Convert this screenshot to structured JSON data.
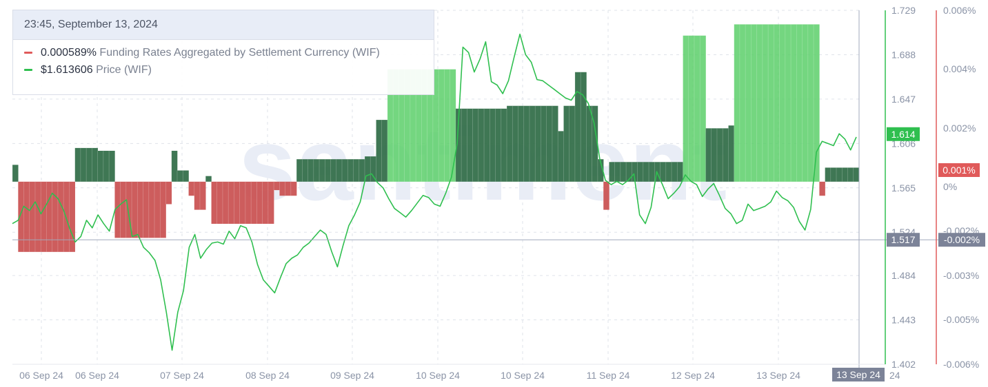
{
  "tooltip": {
    "date": "23:45, September 13, 2024",
    "items": [
      {
        "value": "0.000589%",
        "label": "Funding Rates Aggregated by Settlement Currency (WIF)",
        "color": "#e05a5a"
      },
      {
        "value": "$1.613606",
        "label": "Price (WIF)",
        "color": "#2fbf4f"
      }
    ]
  },
  "watermark": "santiment",
  "crosshair": {
    "price_label": "1.517",
    "rate_label": "-0.002%",
    "date_label": "13 Sep 24"
  },
  "last_values": {
    "price_label": "1.614",
    "rate_label": "0.001%"
  },
  "colors": {
    "price_line": "#2fbf4f",
    "funding_negative": "#c94f4f",
    "funding_positive_dark": "#2f6b45",
    "funding_positive_light": "#5ccf6a",
    "price_axis": "#2fbf4f",
    "rate_axis": "#e05a5a",
    "crosshair": "#a0a8bc",
    "grid": "#dfe3ea",
    "axis_text": "#8a93a6"
  },
  "chart_data": {
    "type": "line",
    "x_tick_labels": [
      "06 Sep 24",
      "06 Sep 24",
      "07 Sep 24",
      "08 Sep 24",
      "09 Sep 24",
      "10 Sep 24",
      "10 Sep 24",
      "11 Sep 24",
      "12 Sep 24",
      "13 Sep 24"
    ],
    "x_tail_label": "24",
    "price_axis": {
      "ticks": [
        "1.729",
        "1.688",
        "1.647",
        "1.606",
        "1.565",
        "1.524",
        "1.484",
        "1.443",
        "1.402"
      ],
      "range": [
        1.402,
        1.729
      ]
    },
    "rate_axis": {
      "ticks": [
        "0.006%",
        "0.004%",
        "0.002%",
        "0%",
        "-0.002%",
        "-0.003%",
        "-0.005%",
        "-0.006%"
      ],
      "range": [
        -0.0065,
        0.0061
      ],
      "unit": "%"
    },
    "series": [
      {
        "name": "Price (WIF)",
        "axis": "price",
        "values": [
          1.532,
          1.535,
          1.548,
          1.544,
          1.552,
          1.541,
          1.55,
          1.56,
          1.555,
          1.544,
          1.528,
          1.515,
          1.52,
          1.535,
          1.528,
          1.54,
          1.532,
          1.525,
          1.545,
          1.55,
          1.554,
          1.52,
          1.522,
          1.51,
          1.505,
          1.498,
          1.48,
          1.45,
          1.415,
          1.45,
          1.47,
          1.51,
          1.522,
          1.5,
          1.508,
          1.514,
          1.515,
          1.513,
          1.525,
          1.518,
          1.53,
          1.528,
          1.515,
          1.494,
          1.48,
          1.474,
          1.468,
          1.482,
          1.495,
          1.5,
          1.503,
          1.51,
          1.514,
          1.52,
          1.526,
          1.522,
          1.506,
          1.492,
          1.512,
          1.53,
          1.54,
          1.552,
          1.576,
          1.578,
          1.57,
          1.565,
          1.555,
          1.546,
          1.542,
          1.538,
          1.544,
          1.551,
          1.558,
          1.556,
          1.55,
          1.548,
          1.56,
          1.575,
          1.606,
          1.695,
          1.69,
          1.672,
          1.684,
          1.7,
          1.663,
          1.66,
          1.652,
          1.664,
          1.686,
          1.707,
          1.688,
          1.681,
          1.665,
          1.664,
          1.66,
          1.656,
          1.652,
          1.648,
          1.646,
          1.654,
          1.651,
          1.643,
          1.625,
          1.592,
          1.572,
          1.568,
          1.571,
          1.568,
          1.572,
          1.578,
          1.54,
          1.532,
          1.547,
          1.58,
          1.568,
          1.555,
          1.56,
          1.566,
          1.577,
          1.571,
          1.568,
          1.557,
          1.564,
          1.569,
          1.558,
          1.546,
          1.541,
          1.532,
          1.535,
          1.55,
          1.544,
          1.546,
          1.548,
          1.552,
          1.562,
          1.556,
          1.553,
          1.547,
          1.534,
          1.526,
          1.545,
          1.598,
          1.608,
          1.606,
          1.604,
          1.615,
          1.61,
          1.6,
          1.612
        ]
      },
      {
        "name": "Funding Rates Aggregated by Settlement Currency (WIF)",
        "axis": "rate",
        "values": [
          0.0006,
          -0.0025,
          -0.0025,
          -0.0025,
          -0.0025,
          -0.0025,
          -0.0025,
          -0.0025,
          -0.0025,
          -0.0025,
          -0.0025,
          0.0012,
          0.0012,
          0.0012,
          0.0012,
          0.0011,
          0.0011,
          0.0011,
          -0.002,
          -0.002,
          -0.002,
          -0.002,
          -0.002,
          -0.002,
          -0.002,
          -0.002,
          -0.002,
          -0.0008,
          0.0011,
          0.0004,
          0.0004,
          -0.0005,
          -0.001,
          -0.001,
          0.0002,
          -0.0015,
          -0.0015,
          -0.0015,
          -0.0015,
          -0.0015,
          -0.0015,
          -0.0015,
          -0.0015,
          -0.0015,
          -0.0015,
          -0.0015,
          -0.0003,
          -0.0005,
          -0.0005,
          -0.0005,
          0.0008,
          0.0008,
          0.0008,
          0.0008,
          0.0008,
          0.0008,
          0.0008,
          0.0008,
          0.0008,
          0.0008,
          0.0008,
          0.0008,
          0.0009,
          0.0009,
          0.0022,
          0.0022,
          0.004,
          0.004,
          0.004,
          0.004,
          0.004,
          0.004,
          0.004,
          0.004,
          0.004,
          0.004,
          0.004,
          0.004,
          0.0026,
          0.0026,
          0.0026,
          0.0026,
          0.0026,
          0.0026,
          0.0026,
          0.0026,
          0.0026,
          0.0027,
          0.0027,
          0.0027,
          0.0027,
          0.0027,
          0.0027,
          0.0027,
          0.0027,
          0.0027,
          0.0018,
          0.0027,
          0.0027,
          0.0039,
          0.0039,
          0.0027,
          0.0027,
          0.0008,
          -0.001,
          0.0007,
          0.0007,
          0.0007,
          0.0007,
          0.0007,
          0.0007,
          0.0007,
          0.0007,
          0.0007,
          0.0007,
          0.0007,
          0.0007,
          0.0007,
          0.0052,
          0.0052,
          0.0052,
          0.0052,
          0.0019,
          0.0019,
          0.0019,
          0.0019,
          0.002,
          0.0056,
          0.0056,
          0.0056,
          0.0056,
          0.0056,
          0.0056,
          0.0056,
          0.0056,
          0.0056,
          0.0056,
          0.0056,
          0.0056,
          0.0056,
          0.0056,
          0.0056,
          -0.0005,
          0.0005,
          0.0005,
          0.0005,
          0.0005,
          0.0005,
          0.0005
        ]
      }
    ]
  }
}
